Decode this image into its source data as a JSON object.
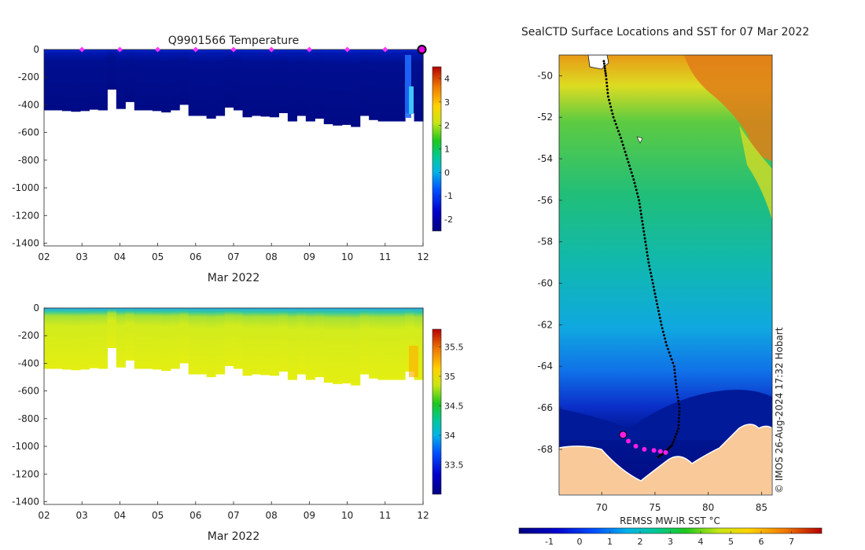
{
  "chart_data": [
    {
      "type": "heatmap",
      "title": "Q9901566  Temperature",
      "x_tick_labels": [
        "02",
        "03",
        "04",
        "05",
        "06",
        "07",
        "08",
        "09",
        "10",
        "11",
        "12"
      ],
      "x_ticks": [
        2,
        3,
        4,
        5,
        6,
        7,
        8,
        9,
        10,
        11,
        12
      ],
      "xlabel": "Mar 2022",
      "xlim": [
        2,
        12
      ],
      "y_tick_labels": [
        "0",
        "-200",
        "-400",
        "-600",
        "-800",
        "-1000",
        "-1200",
        "-1400"
      ],
      "y_ticks": [
        0,
        -200,
        -400,
        -600,
        -800,
        -1000,
        -1200,
        -1400
      ],
      "ylim": [
        -1420,
        0
      ],
      "surface_markers_day": [
        3,
        4,
        5,
        6,
        7,
        8,
        9,
        10,
        11,
        12
      ],
      "profile_max_depth": [
        440,
        440,
        445,
        450,
        445,
        435,
        440,
        290,
        430,
        380,
        440,
        440,
        445,
        455,
        440,
        400,
        480,
        480,
        500,
        480,
        420,
        440,
        490,
        480,
        485,
        490,
        460,
        520,
        480,
        520,
        500,
        540,
        550,
        545,
        560,
        480,
        510,
        520,
        520,
        520,
        460,
        520
      ],
      "colorbar": {
        "label_values": [
          "-2",
          "-1",
          "0",
          "1",
          "2",
          "3",
          "4"
        ],
        "vmin": -2.5,
        "vmax": 4.5
      }
    },
    {
      "type": "heatmap",
      "title": "",
      "x_tick_labels": [
        "02",
        "03",
        "04",
        "05",
        "06",
        "07",
        "08",
        "09",
        "10",
        "11",
        "12"
      ],
      "x_ticks": [
        2,
        3,
        4,
        5,
        6,
        7,
        8,
        9,
        10,
        11,
        12
      ],
      "xlabel": "Mar 2022",
      "xlim": [
        2,
        12
      ],
      "y_tick_labels": [
        "0",
        "-200",
        "-400",
        "-600",
        "-800",
        "-1000",
        "-1200",
        "-1400"
      ],
      "y_ticks": [
        0,
        -200,
        -400,
        -600,
        -800,
        -1000,
        -1200,
        -1400
      ],
      "ylim": [
        -1420,
        0
      ],
      "colorbar": {
        "label_values": [
          "33.5",
          "34",
          "34.5",
          "35",
          "35.5"
        ],
        "vmin": 33.0,
        "vmax": 35.8
      }
    },
    {
      "type": "heatmap",
      "title": "SealCTD Surface Locations and SST for 07 Mar 2022",
      "x_tick_labels": [
        "70",
        "75",
        "80",
        "85"
      ],
      "x_ticks": [
        70,
        75,
        80,
        85
      ],
      "xlim": [
        66,
        86
      ],
      "y_tick_labels": [
        "-50",
        "-52",
        "-54",
        "-56",
        "-58",
        "-60",
        "-62",
        "-64",
        "-66",
        "-68"
      ],
      "y_ticks": [
        -50,
        -52,
        -54,
        -56,
        -58,
        -60,
        -62,
        -64,
        -66,
        -68
      ],
      "ylim": [
        -70.2,
        -49
      ],
      "track": [
        [
          70.2,
          -49.3
        ],
        [
          70.4,
          -50
        ],
        [
          70.6,
          -51
        ],
        [
          71.1,
          -52
        ],
        [
          71.8,
          -53
        ],
        [
          72.4,
          -54
        ],
        [
          73.0,
          -55
        ],
        [
          73.5,
          -56
        ],
        [
          73.8,
          -57
        ],
        [
          74.1,
          -58
        ],
        [
          74.4,
          -59
        ],
        [
          74.8,
          -60
        ],
        [
          75.2,
          -61
        ],
        [
          75.6,
          -62
        ],
        [
          76.1,
          -63
        ],
        [
          76.8,
          -64
        ],
        [
          77.0,
          -65
        ],
        [
          77.3,
          -66
        ],
        [
          77.2,
          -67
        ],
        [
          76.6,
          -67.8
        ],
        [
          75.8,
          -68.2
        ],
        [
          75.2,
          -68.4
        ]
      ],
      "recent_points": [
        [
          72.0,
          -67.3
        ],
        [
          72.5,
          -67.6
        ],
        [
          73.2,
          -67.85
        ],
        [
          74.0,
          -68.0
        ],
        [
          74.9,
          -68.05
        ],
        [
          75.5,
          -68.1
        ],
        [
          76.0,
          -68.15
        ]
      ],
      "colorbar": {
        "label": "REMSS MW-IR SST °C",
        "label_values": [
          "-1",
          "0",
          "1",
          "2",
          "3",
          "4",
          "5",
          "6",
          "7"
        ],
        "vmin": -2,
        "vmax": 8
      },
      "credit": "© IMOS 26-Aug-2024 17:32 Hobart"
    }
  ]
}
